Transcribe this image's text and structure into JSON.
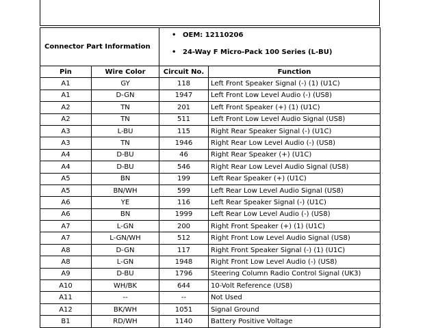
{
  "info": {
    "label": "Connector Part Information",
    "bullets": [
      "OEM: 12110206",
      "24-Way F Micro-Pack 100 Series (L-BU)"
    ]
  },
  "table": {
    "columns": [
      "Pin",
      "Wire Color",
      "Circuit No.",
      "Function"
    ],
    "rows": [
      [
        "A1",
        "GY",
        "118",
        "Left Front Speaker Signal (-) (1) (U1C)"
      ],
      [
        "A1",
        "D-GN",
        "1947",
        "Left Front Low Level Audio (-) (US8)"
      ],
      [
        "A2",
        "TN",
        "201",
        "Left Front Speaker (+) (1) (U1C)"
      ],
      [
        "A2",
        "TN",
        "511",
        "Left Front Low Level Audio Signal (US8)"
      ],
      [
        "A3",
        "L-BU",
        "115",
        "Right Rear Speaker Signal (-) (U1C)"
      ],
      [
        "A3",
        "TN",
        "1946",
        "Right Rear Low Level Audio (-) (US8)"
      ],
      [
        "A4",
        "D-BU",
        "46",
        "Right Rear Speaker (+) (U1C)"
      ],
      [
        "A4",
        "D-BU",
        "546",
        "Right Rear Low Level Audio Signal (US8)"
      ],
      [
        "A5",
        "BN",
        "199",
        "Left Rear Speaker (+) (U1C)"
      ],
      [
        "A5",
        "BN/WH",
        "599",
        "Left Rear Low Level Audio Signal (US8)"
      ],
      [
        "A6",
        "YE",
        "116",
        "Left Rear Speaker Signal (-) (U1C)"
      ],
      [
        "A6",
        "BN",
        "1999",
        "Left Rear Low Level Audio (-) (US8)"
      ],
      [
        "A7",
        "L-GN",
        "200",
        "Right Front Speaker (+) (1) (U1C)"
      ],
      [
        "A7",
        "L-GN/WH",
        "512",
        "Right Front Low Level Audio Signal (US8)"
      ],
      [
        "A8",
        "D-GN",
        "117",
        "Right Front Speaker Signal (-) (1) (U1C)"
      ],
      [
        "A8",
        "L-GN",
        "1948",
        "Right Front Low Level Audio (-) (US8)"
      ],
      [
        "A9",
        "D-BU",
        "1796",
        "Steering Column Radio Control Signal (UK3)"
      ],
      [
        "A10",
        "WH/BK",
        "644",
        "10-Volt Reference (US8)"
      ],
      [
        "A11",
        "--",
        "--",
        "Not Used"
      ],
      [
        "A12",
        "BK/WH",
        "1051",
        "Signal Ground"
      ],
      [
        "B1",
        "RD/WH",
        "1140",
        "Battery Positive Voltage"
      ]
    ]
  }
}
